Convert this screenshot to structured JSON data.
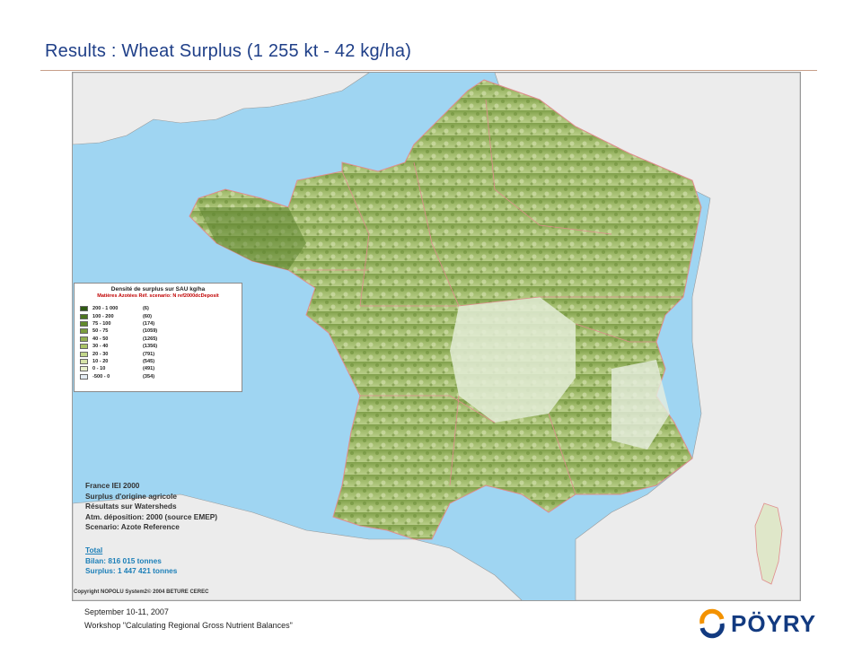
{
  "title": "Results : Wheat Surplus (1 255 kt - 42 kg/ha)",
  "legend": {
    "title": "Densité de surplus sur SAU kg/ha",
    "subtitle": "Matières Azotées  Réf. scenario: N ref2000dcDeposit",
    "rows": [
      {
        "range": "200 - 1 000",
        "count": "(6)",
        "color": "#2f5a12"
      },
      {
        "range": "100 - 200",
        "count": "(60)",
        "color": "#4c7420"
      },
      {
        "range": "75 - 100",
        "count": "(174)",
        "color": "#628a2c"
      },
      {
        "range": "50 - 75",
        "count": "(1059)",
        "color": "#7c9e3e"
      },
      {
        "range": "40 - 50",
        "count": "(1265)",
        "color": "#94b252"
      },
      {
        "range": "30 - 40",
        "count": "(1356)",
        "color": "#aac466"
      },
      {
        "range": "20 - 30",
        "count": "(791)",
        "color": "#c2d68a"
      },
      {
        "range": "10 - 20",
        "count": "(545)",
        "color": "#d6e3a8"
      },
      {
        "range": "0 - 10",
        "count": "(491)",
        "color": "#e8efcc"
      },
      {
        "range": "-500 - 0",
        "count": "(354)",
        "color": "#e4ecf3"
      }
    ]
  },
  "info": {
    "line1": "France IEI 2000",
    "line2": "Surplus d'origine agricole",
    "line3": "Résultats sur Watersheds",
    "line4": " Atm. déposition: 2000 (source EMEP)",
    "line5": "Scenario: Azote Reference"
  },
  "total": {
    "label": "Total",
    "bilan": "Bilan:  816 015 tonnes",
    "surplus": "Surplus: 1 447 421 tonnes"
  },
  "copyright": "Copyright NOPOLU System2© 2004 BETURE CEREC",
  "footer": {
    "date": "September 10-11, 2007",
    "workshop": "Workshop \"Calculating Regional Gross Nutrient Balances\""
  },
  "logo_text": "PÖYRY",
  "colors": {
    "sea": "#9fd5f2",
    "land_other": "#ececec",
    "borders": "#e08c8c",
    "title": "#1f3f88",
    "logo_blue": "#123a80",
    "logo_orange": "#f39200"
  }
}
